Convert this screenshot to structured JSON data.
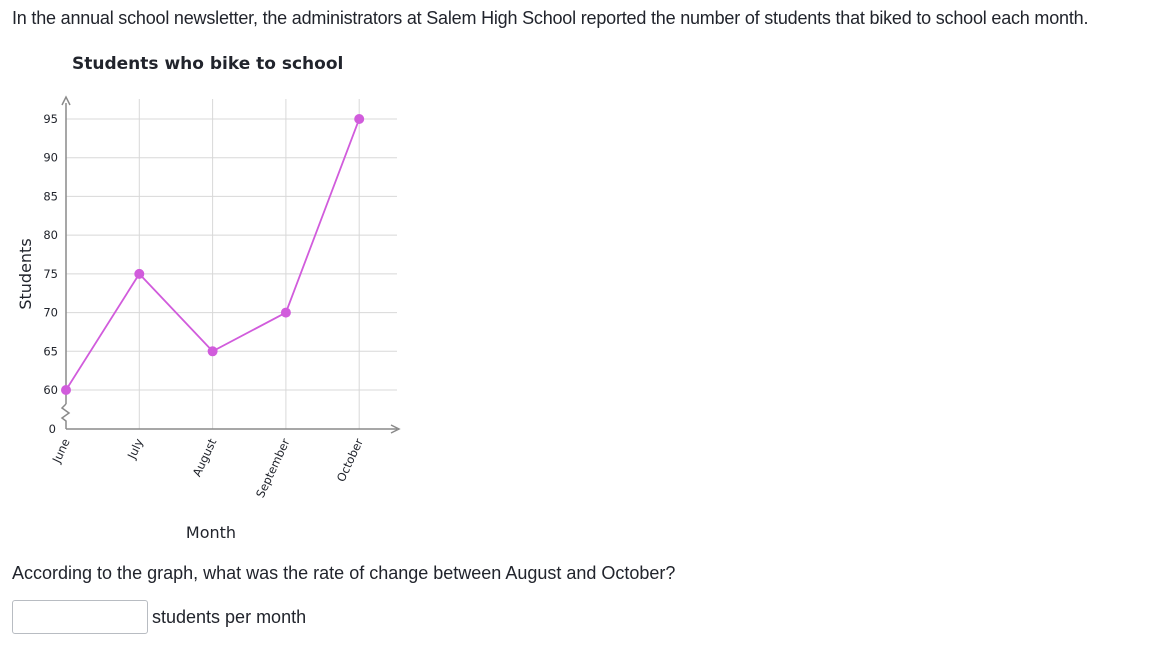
{
  "intro_text": "In the annual school newsletter, the administrators at Salem High School reported the number of students that biked to school each month.",
  "chart_data": {
    "type": "line",
    "title": "Students who bike to school",
    "xlabel": "Month",
    "ylabel": "Students",
    "categories": [
      "June",
      "July",
      "August",
      "September",
      "October"
    ],
    "values": [
      60,
      75,
      65,
      70,
      95
    ],
    "y_ticks": [
      60,
      65,
      70,
      75,
      80,
      85,
      90,
      95
    ],
    "y_axis_origin_label": "0",
    "ylim": [
      60,
      95
    ],
    "axis_break": true,
    "grid": true,
    "line_color": "#d15cdc",
    "marker_color": "#d15cdc",
    "grid_color": "#d8d8d8",
    "axis_color": "#8a8a8a"
  },
  "question": {
    "text": "According to the graph, what was the rate of change between August and October?",
    "answer_value": "",
    "unit_label": "students per month"
  }
}
